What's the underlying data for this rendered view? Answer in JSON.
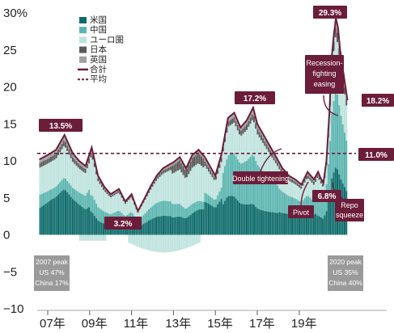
{
  "chart_data": {
    "type": "area",
    "ylim": [
      -10,
      30
    ],
    "y_ticks": [
      "30%",
      "25",
      "20",
      "15",
      "10",
      "5",
      "0",
      "−5",
      "−10"
    ],
    "x_ticks": [
      "07年",
      "09年",
      "11年",
      "13年",
      "15年",
      "17年",
      "19年"
    ],
    "x_range": [
      2006.5,
      2021.9
    ],
    "legend_position": "top-left",
    "legend": [
      {
        "name": "米国",
        "color": "#0f6b6b",
        "kind": "box"
      },
      {
        "name": "中国",
        "color": "#5bb5b0",
        "kind": "box"
      },
      {
        "name": "ユーロ圏",
        "color": "#bfe3de",
        "kind": "box"
      },
      {
        "name": "日本",
        "color": "#5a5a5a",
        "kind": "box"
      },
      {
        "name": "英国",
        "color": "#a0a0a0",
        "kind": "box"
      },
      {
        "name": "合計",
        "color": "#6b1d3a",
        "kind": "line"
      },
      {
        "name": "平均",
        "color": "#6b1d3a",
        "kind": "dash"
      }
    ],
    "average": 11.0,
    "total_series": {
      "name": "合計",
      "x": [
        2006.6,
        2007.0,
        2007.4,
        2007.8,
        2008.2,
        2008.5,
        2008.8,
        2009.1,
        2009.4,
        2009.7,
        2010.0,
        2010.4,
        2010.7,
        2011.0,
        2011.3,
        2011.6,
        2011.9,
        2012.2,
        2012.5,
        2012.8,
        2013.0,
        2013.3,
        2013.6,
        2013.9,
        2014.2,
        2014.5,
        2014.8,
        2015.0,
        2015.3,
        2015.6,
        2015.9,
        2016.2,
        2016.5,
        2016.8,
        2017.0,
        2017.3,
        2017.6,
        2017.9,
        2018.2,
        2018.5,
        2018.8,
        2019.1,
        2019.4,
        2019.7,
        2019.9,
        2020.0,
        2020.15,
        2020.3,
        2020.45,
        2020.55,
        2020.65,
        2020.75,
        2020.85,
        2020.95,
        2021.1,
        2021.3
      ],
      "values": [
        10.2,
        10.8,
        11.5,
        13.5,
        11.0,
        10.0,
        9.3,
        11.8,
        8.0,
        6.5,
        5.5,
        6.2,
        4.5,
        5.5,
        3.2,
        4.8,
        6.5,
        8.0,
        9.0,
        9.5,
        9.8,
        10.5,
        9.0,
        10.8,
        11.5,
        10.5,
        9.0,
        8.0,
        11.0,
        15.8,
        16.5,
        14.5,
        15.5,
        17.2,
        15.0,
        13.5,
        12.0,
        10.5,
        9.0,
        8.0,
        7.5,
        6.8,
        8.5,
        7.5,
        8.5,
        7.8,
        7.0,
        10.0,
        17.0,
        24.0,
        27.0,
        29.3,
        28.0,
        25.0,
        22.0,
        18.2
      ]
    },
    "annotations": [
      {
        "text": "13.5%",
        "kind": "value"
      },
      {
        "text": "3.2%",
        "kind": "value"
      },
      {
        "text": "17.2%",
        "kind": "value"
      },
      {
        "text": "29.3%",
        "kind": "value"
      },
      {
        "text": "18.2%",
        "kind": "value"
      },
      {
        "text": "11.0%",
        "kind": "value"
      },
      {
        "text": "6.8%",
        "kind": "value"
      },
      {
        "text": "Double tightening",
        "kind": "event"
      },
      {
        "text": "Pivot",
        "kind": "event"
      },
      {
        "text": "Repo squeeze",
        "kind": "event"
      },
      {
        "text": "Recession-fighting easing",
        "kind": "event"
      }
    ],
    "peak_notes": [
      {
        "lines": [
          "2007 peak",
          "US 47%",
          "China 17%"
        ]
      },
      {
        "lines": [
          "2020 peak",
          "US 35%",
          "China 40%"
        ]
      }
    ]
  }
}
